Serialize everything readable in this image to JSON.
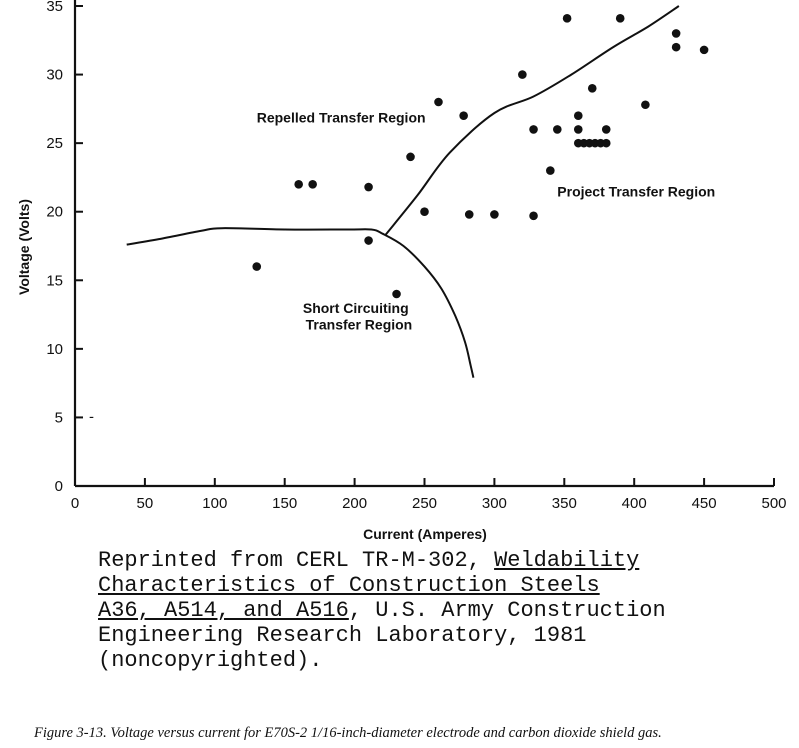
{
  "chart_data": {
    "type": "scatter",
    "title": "",
    "xlabel": "Current (Amperes)",
    "ylabel": "Voltage (Volts)",
    "xlim": [
      0,
      500
    ],
    "ylim": [
      0,
      35
    ],
    "x_ticks": [
      "0",
      "50",
      "100",
      "150",
      "200",
      "250",
      "300",
      "350",
      "400",
      "450",
      "500"
    ],
    "y_ticks": [
      "0",
      "5",
      "10",
      "15",
      "20",
      "25",
      "30",
      "35"
    ],
    "grid": false,
    "points": [
      {
        "x": 130,
        "y": 16
      },
      {
        "x": 160,
        "y": 22
      },
      {
        "x": 170,
        "y": 22
      },
      {
        "x": 210,
        "y": 21.8
      },
      {
        "x": 210,
        "y": 17.9
      },
      {
        "x": 230,
        "y": 14
      },
      {
        "x": 240,
        "y": 24
      },
      {
        "x": 250,
        "y": 20
      },
      {
        "x": 260,
        "y": 28
      },
      {
        "x": 278,
        "y": 27
      },
      {
        "x": 282,
        "y": 19.8
      },
      {
        "x": 300,
        "y": 19.8
      },
      {
        "x": 320,
        "y": 30
      },
      {
        "x": 328,
        "y": 26
      },
      {
        "x": 328,
        "y": 19.7
      },
      {
        "x": 340,
        "y": 23
      },
      {
        "x": 345,
        "y": 26
      },
      {
        "x": 352,
        "y": 34.1
      },
      {
        "x": 360,
        "y": 27
      },
      {
        "x": 360,
        "y": 26
      },
      {
        "x": 360,
        "y": 25
      },
      {
        "x": 364,
        "y": 25
      },
      {
        "x": 368,
        "y": 25
      },
      {
        "x": 370,
        "y": 29
      },
      {
        "x": 372,
        "y": 25
      },
      {
        "x": 376,
        "y": 25
      },
      {
        "x": 380,
        "y": 26
      },
      {
        "x": 380,
        "y": 25
      },
      {
        "x": 390,
        "y": 34.1
      },
      {
        "x": 408,
        "y": 27.8
      },
      {
        "x": 430,
        "y": 33
      },
      {
        "x": 430,
        "y": 32
      },
      {
        "x": 450,
        "y": 31.8
      }
    ],
    "boundaries": [
      {
        "points": [
          [
            37,
            17.6
          ],
          [
            60,
            18
          ],
          [
            90,
            18.6
          ],
          [
            105,
            18.8
          ],
          [
            150,
            18.7
          ],
          [
            195,
            18.7
          ],
          [
            212,
            18.7
          ],
          [
            220,
            18.4
          ],
          [
            235,
            17.5
          ],
          [
            250,
            16.0
          ],
          [
            262,
            14.4
          ],
          [
            272,
            12.4
          ],
          [
            279,
            10.5
          ],
          [
            283,
            8.8
          ],
          [
            285,
            7.9
          ]
        ]
      },
      {
        "points": [
          [
            222,
            18.3
          ],
          [
            245,
            21.2
          ],
          [
            268,
            24.3
          ],
          [
            300,
            27.2
          ],
          [
            328,
            28.4
          ],
          [
            355,
            30
          ],
          [
            385,
            32
          ],
          [
            410,
            33.5
          ],
          [
            432,
            35
          ]
        ]
      }
    ],
    "annotations": [
      {
        "text": "Repelled Transfer Region",
        "x": 130,
        "y": 26.5
      },
      {
        "text": "Project Transfer Region",
        "x": 345,
        "y": 21.1
      },
      {
        "text": "Short Circuiting",
        "x": 163,
        "y": 12.6
      },
      {
        "text": "Transfer Region",
        "x": 165,
        "y": 11.4
      }
    ],
    "stray_mark": {
      "text": "-",
      "x": 10,
      "y": 5
    }
  },
  "reprint": {
    "l1_a": "Reprinted from CERL TR-M-302, ",
    "l1_b": "Weldability",
    "l2": "Characteristics of Construction Steels",
    "l3_a": "A36, A514, and A516",
    "l3_b": ", U.S. Army Construction",
    "l4": "Engineering Research Laboratory, 1981",
    "l5": "(noncopyrighted)."
  },
  "caption": "Figure 3-13. Voltage versus current for E70S-2 1/16-inch-diameter electrode and carbon dioxide shield gas."
}
